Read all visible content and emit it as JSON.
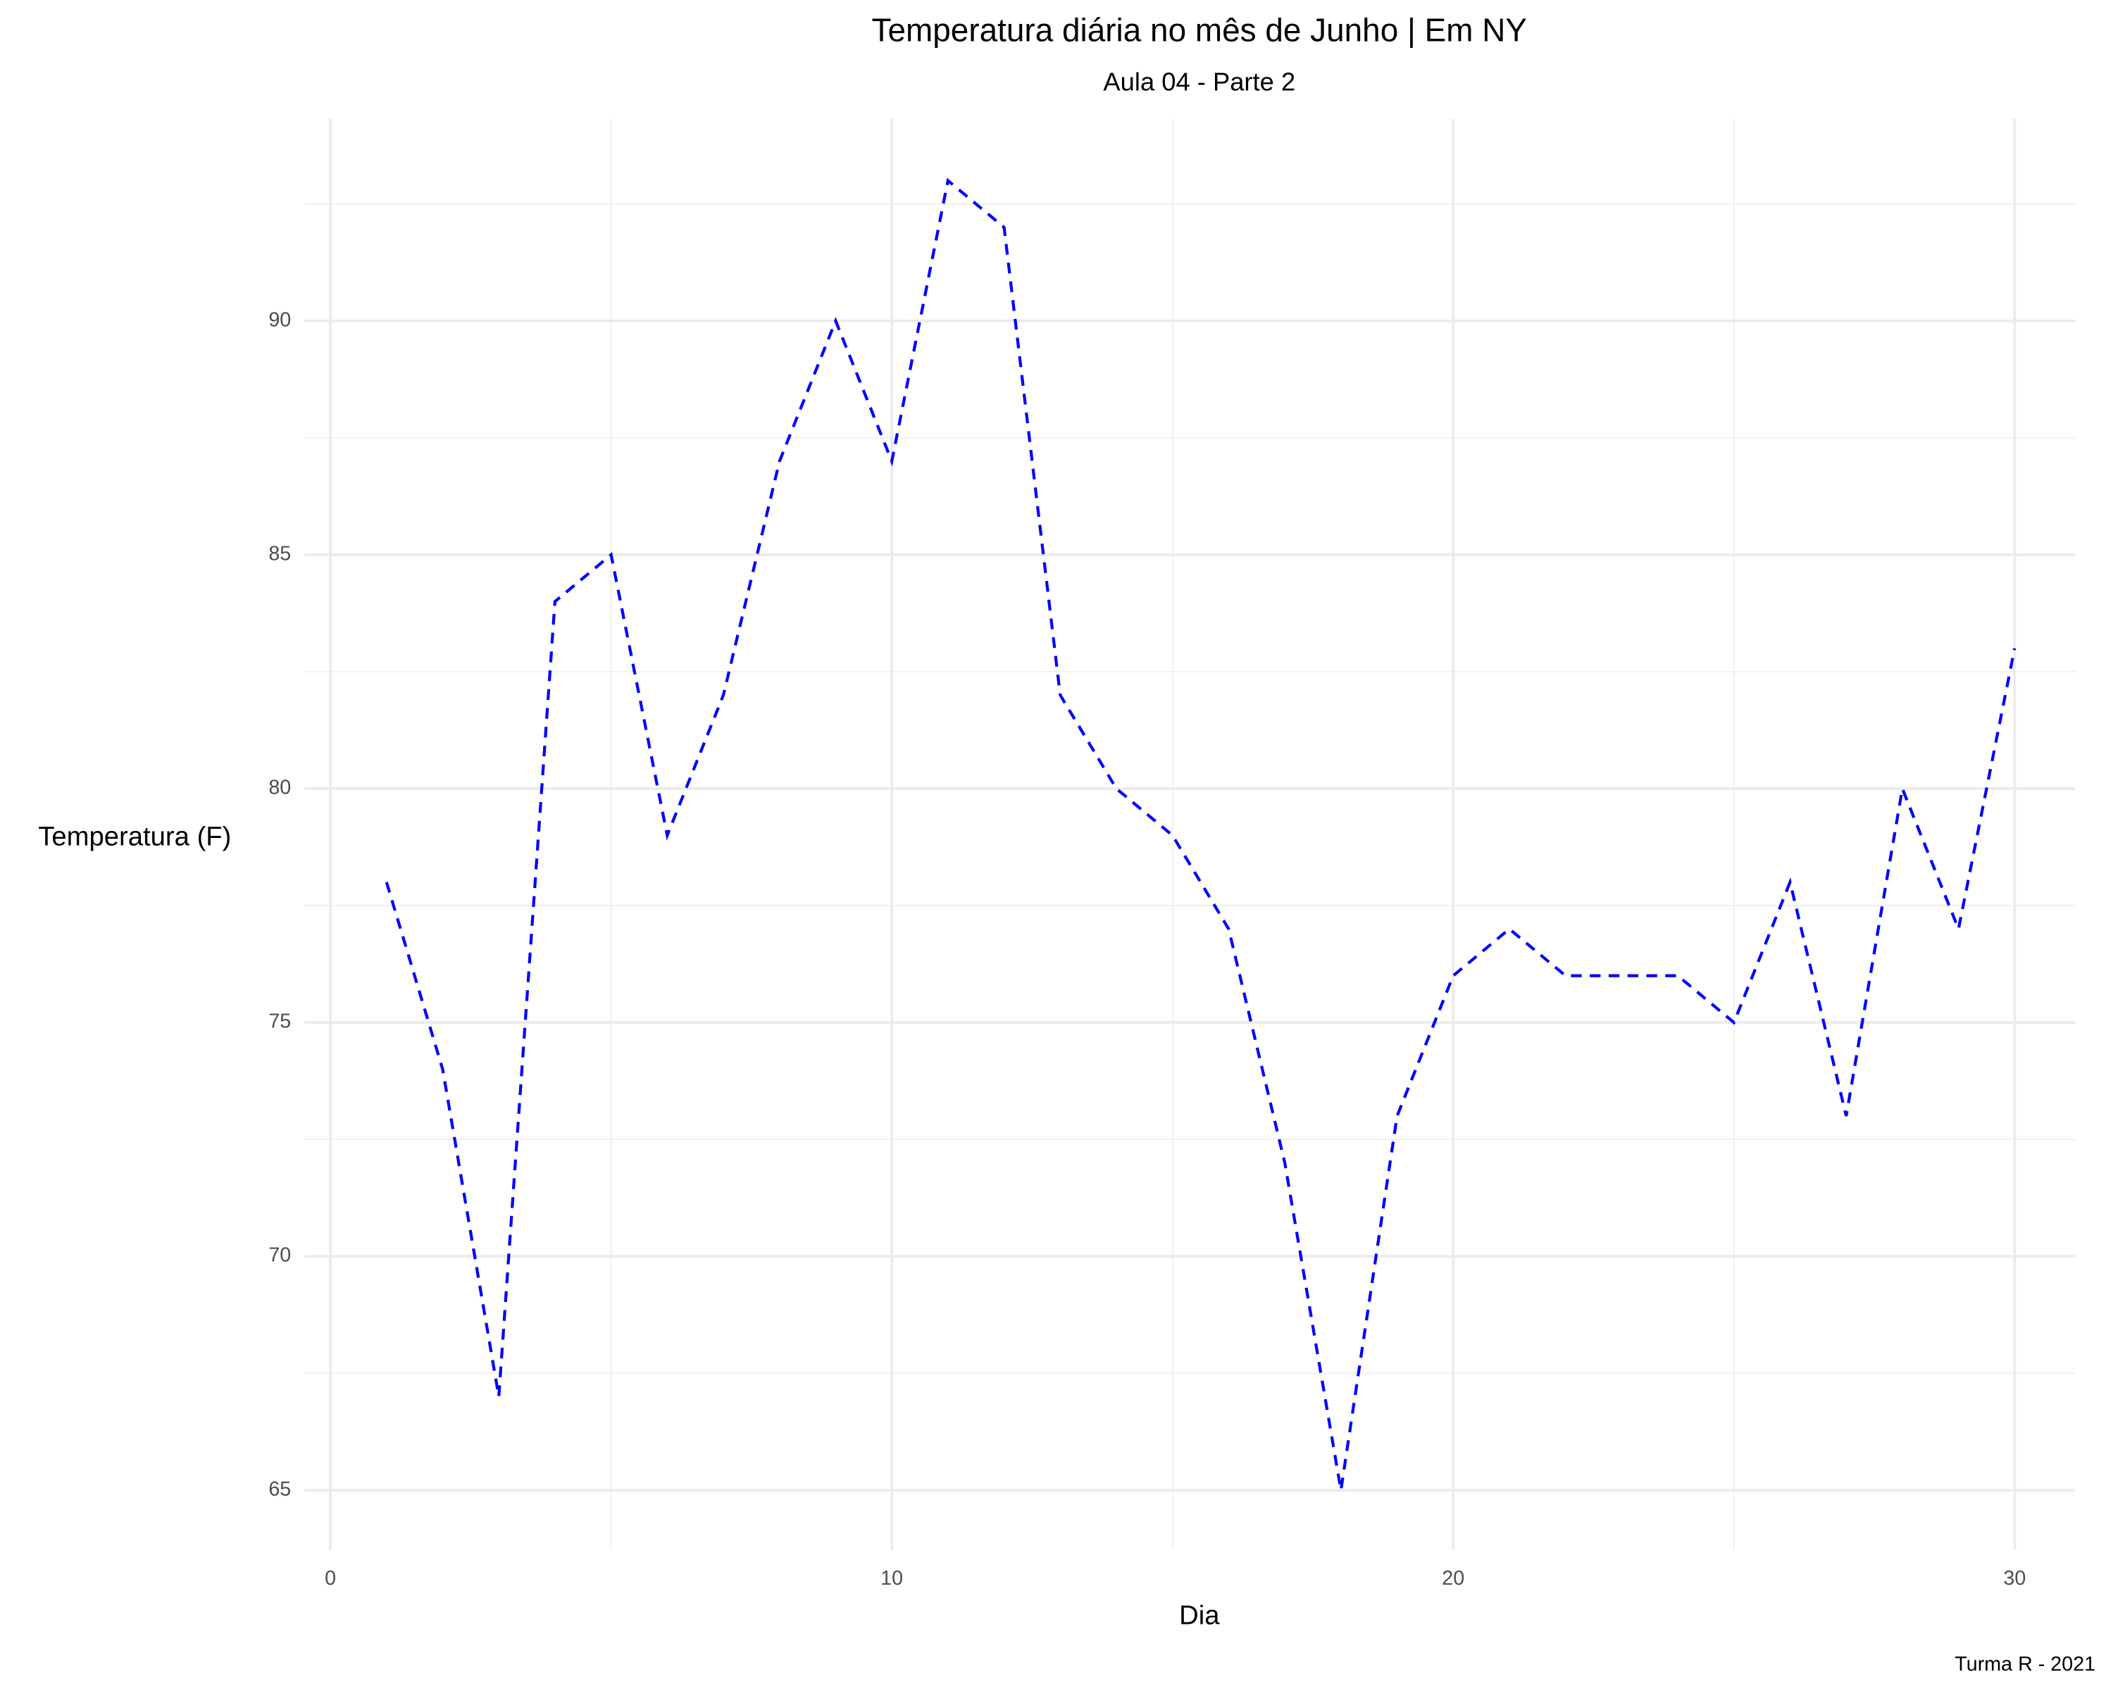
{
  "chart_data": {
    "type": "line",
    "title": "Temperatura diária no mês de Junho | Em NY",
    "subtitle": "Aula 04 - Parte 2",
    "x_label": "Dia",
    "y_label": "Temperatura (F)",
    "caption": "Turma R - 2021",
    "x": [
      1,
      2,
      3,
      4,
      5,
      6,
      7,
      8,
      9,
      10,
      11,
      12,
      13,
      14,
      15,
      16,
      17,
      18,
      19,
      20,
      21,
      22,
      23,
      24,
      25,
      26,
      27,
      28,
      29,
      30
    ],
    "series": [
      {
        "name": "Temperatura",
        "color": "#0000ff",
        "dash": true,
        "values": [
          78,
          74,
          67,
          84,
          85,
          79,
          82,
          87,
          90,
          87,
          93,
          92,
          82,
          80,
          79,
          77,
          72,
          65,
          73,
          76,
          77,
          76,
          76,
          76,
          75,
          78,
          73,
          80,
          77,
          83
        ]
      }
    ],
    "xlim": [
      -0.46,
      31.08
    ],
    "ylim": [
      63.73,
      94.32
    ],
    "xticks": [
      0,
      10,
      20,
      30
    ],
    "yticks": [
      65,
      70,
      75,
      80,
      85,
      90
    ],
    "grid": true
  }
}
